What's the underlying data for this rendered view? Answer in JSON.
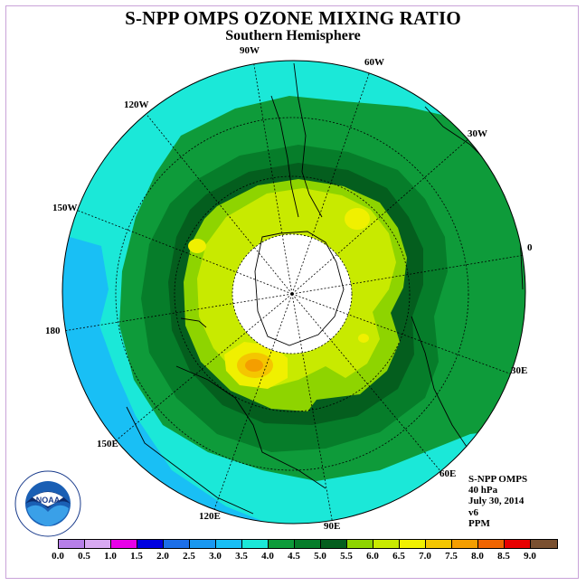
{
  "title": "S-NPP OMPS OZONE MIXING RATIO",
  "subtitle": "Southern Hemisphere",
  "longitude_labels": [
    "90W",
    "60W",
    "30W",
    "0",
    "30E",
    "60E",
    "90E",
    "120E",
    "150E",
    "180",
    "150W",
    "120W"
  ],
  "info": [
    "S-NPP OMPS",
    "40 hPa",
    "July 30, 2014",
    "v6",
    "PPM"
  ],
  "logo_text": "NOAA",
  "colors": {
    "ocean_frame": "#c9a3d9",
    "no_data": "#ffffff"
  },
  "colorbar": {
    "colors": [
      "#b77fe9",
      "#d8a9f2",
      "#e800e8",
      "#0000e0",
      "#1c6fe8",
      "#1a98f0",
      "#19bff5",
      "#1be8d8",
      "#0e9b3a",
      "#067d2a",
      "#045e1e",
      "#8ed400",
      "#c8ea00",
      "#f0f000",
      "#f4c600",
      "#f49e00",
      "#f06400",
      "#e80000",
      "#7a5030"
    ],
    "ticks": [
      "0.0",
      "0.5",
      "1.0",
      "1.5",
      "2.0",
      "2.5",
      "3.0",
      "3.5",
      "4.0",
      "4.5",
      "5.0",
      "5.5",
      "6.0",
      "6.5",
      "7.0",
      "7.5",
      "8.0",
      "8.5",
      "9.0"
    ]
  }
}
